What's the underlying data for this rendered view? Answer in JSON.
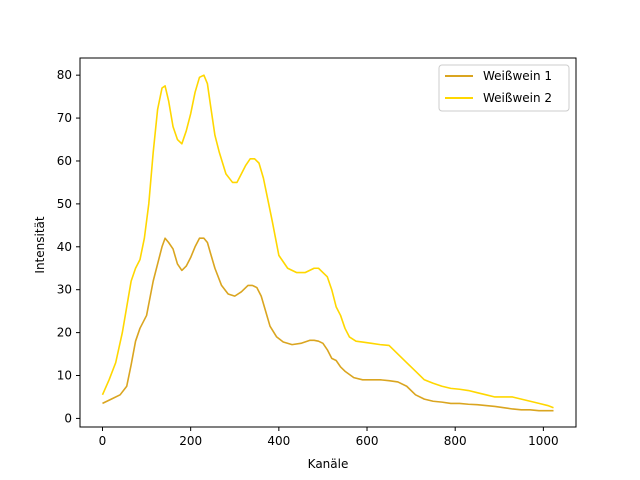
{
  "chart_data": {
    "type": "line",
    "title": "",
    "xlabel": "Kanäle",
    "ylabel": "Intensität",
    "xlim": [
      -51,
      1074
    ],
    "ylim": [
      -2,
      84
    ],
    "xticks": [
      0,
      200,
      400,
      600,
      800,
      1000
    ],
    "yticks": [
      0,
      10,
      20,
      30,
      40,
      50,
      60,
      70,
      80
    ],
    "grid": false,
    "legend_position": "top-right",
    "series": [
      {
        "name": "Weißwein 1",
        "color": "#DAA520",
        "x": [
          0,
          20,
          40,
          55,
          65,
          75,
          85,
          100,
          115,
          125,
          135,
          142,
          150,
          160,
          170,
          180,
          190,
          200,
          210,
          220,
          230,
          238,
          245,
          255,
          270,
          285,
          300,
          315,
          330,
          340,
          350,
          360,
          370,
          380,
          395,
          410,
          430,
          450,
          470,
          480,
          490,
          500,
          510,
          520,
          530,
          540,
          550,
          570,
          590,
          610,
          630,
          650,
          670,
          690,
          710,
          730,
          750,
          770,
          790,
          810,
          830,
          850,
          870,
          890,
          910,
          930,
          950,
          970,
          990,
          1010,
          1023
        ],
        "y": [
          3.5,
          4.5,
          5.5,
          7.5,
          12.5,
          18,
          21,
          24,
          32,
          36,
          40,
          42,
          41,
          39.5,
          36,
          34.5,
          35.5,
          37.5,
          40,
          42,
          42,
          41,
          38.5,
          35,
          31,
          29,
          28.5,
          29.5,
          31,
          31,
          30.5,
          28.5,
          25,
          21.5,
          19,
          17.8,
          17.2,
          17.5,
          18.2,
          18.2,
          18,
          17.5,
          16,
          14,
          13.5,
          12,
          11,
          9.5,
          9,
          9,
          9,
          8.8,
          8.5,
          7.5,
          5.5,
          4.5,
          4,
          3.8,
          3.5,
          3.5,
          3.3,
          3.2,
          3,
          2.8,
          2.5,
          2.2,
          2,
          2,
          1.8,
          1.8,
          1.8
        ]
      },
      {
        "name": "Weißwein 2",
        "color": "#FFD700",
        "x": [
          0,
          15,
          30,
          45,
          55,
          65,
          75,
          85,
          95,
          105,
          115,
          125,
          135,
          142,
          150,
          160,
          170,
          180,
          190,
          200,
          210,
          220,
          230,
          238,
          245,
          255,
          265,
          280,
          295,
          305,
          315,
          325,
          335,
          345,
          355,
          365,
          375,
          385,
          400,
          420,
          440,
          460,
          470,
          480,
          490,
          500,
          510,
          520,
          530,
          540,
          550,
          560,
          575,
          590,
          610,
          630,
          650,
          670,
          690,
          710,
          730,
          750,
          770,
          790,
          810,
          830,
          850,
          870,
          890,
          910,
          930,
          950,
          970,
          990,
          1010,
          1023
        ],
        "y": [
          5.5,
          9,
          13,
          20,
          26,
          32,
          35,
          37,
          42,
          50,
          62,
          72,
          77,
          77.5,
          74,
          68,
          65,
          64,
          67,
          71,
          76,
          79.5,
          80,
          78,
          73,
          66,
          62,
          57,
          55,
          55,
          57,
          59,
          60.5,
          60.5,
          59.5,
          56,
          51,
          46,
          38,
          35,
          34,
          34,
          34.5,
          35,
          35,
          34,
          33,
          30,
          26,
          24,
          21,
          19,
          18,
          17.8,
          17.5,
          17.2,
          17,
          15,
          13,
          11,
          9,
          8.2,
          7.5,
          7,
          6.8,
          6.5,
          6,
          5.5,
          5,
          5,
          5,
          4.5,
          4,
          3.5,
          3,
          2.5
        ]
      }
    ]
  }
}
